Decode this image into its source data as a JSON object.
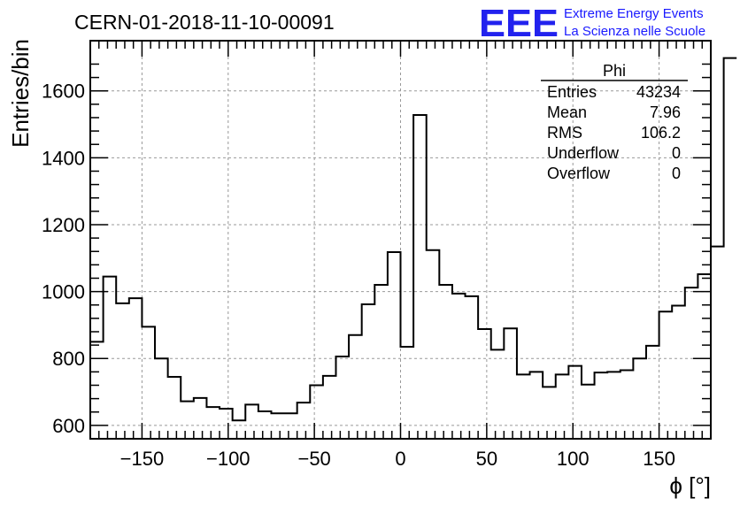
{
  "header": {
    "title": "CERN-01-2018-11-10-00091",
    "logo_mark": "EEE",
    "logo_line1": "Extreme Energy Events",
    "logo_line2": "La Scienza nelle Scuole",
    "logo_color": "#1a1aff"
  },
  "stats_box": {
    "name": "Phi",
    "rows": [
      {
        "label": "Entries",
        "value": "43234"
      },
      {
        "label": "Mean",
        "value": "7.96"
      },
      {
        "label": "RMS",
        "value": "106.2"
      },
      {
        "label": "Underflow",
        "value": "0"
      },
      {
        "label": "Overflow",
        "value": "0"
      }
    ]
  },
  "chart_data": {
    "type": "bar",
    "histogram": true,
    "title": "CERN-01-2018-11-10-00091",
    "xlabel": "ϕ [°]",
    "ylabel": "Entries/bin",
    "xlim": [
      -180,
      180
    ],
    "ylim": [
      560,
      1750
    ],
    "bin_width": 7.5,
    "grid": true,
    "x_ticks": [
      -150,
      -100,
      -50,
      0,
      50,
      100,
      150
    ],
    "x_tick_labels": [
      "−150",
      "−100",
      "−50",
      "0",
      "50",
      "100",
      "150"
    ],
    "y_ticks": [
      600,
      800,
      1000,
      1200,
      1400,
      1600
    ],
    "y_tick_labels": [
      "600",
      "800",
      "1000",
      "1200",
      "1400",
      "1600"
    ],
    "series": [
      {
        "line_color": "#000000",
        "bin_edges_start": -180,
        "values": [
          850,
          1045,
          965,
          980,
          895,
          800,
          745,
          672,
          682,
          655,
          650,
          615,
          662,
          642,
          636,
          636,
          668,
          720,
          748,
          806,
          870,
          962,
          1020,
          1118,
          835,
          1528,
          1124,
          1020,
          994,
          986,
          888,
          826,
          890,
          752,
          760,
          715,
          752,
          778,
          722,
          758,
          760,
          765,
          800,
          838,
          940,
          958,
          1012,
          1052,
          1135,
          1698
        ]
      }
    ]
  }
}
